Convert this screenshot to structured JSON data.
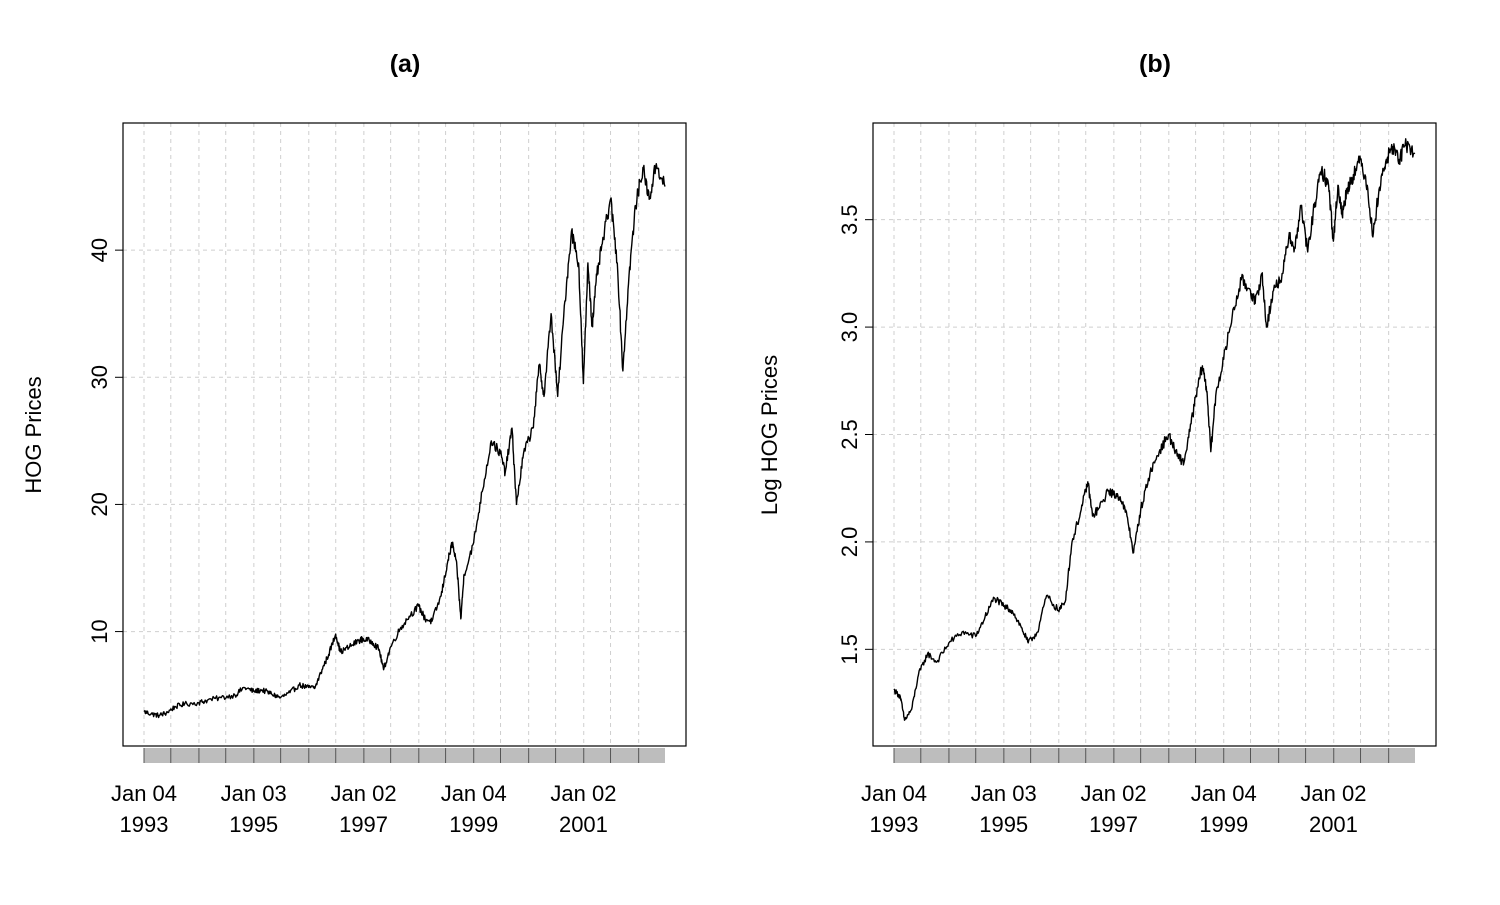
{
  "chart_data": [
    {
      "type": "line",
      "title": "(a)",
      "xlabel": "",
      "ylabel": "HOG Prices",
      "x_range": [
        "1993-01-04",
        "2002-06-28"
      ],
      "ylim": [
        1,
        50
      ],
      "y_ticks": [
        "10",
        "20",
        "30",
        "40"
      ],
      "x_tick_labels": [
        {
          "date": "1993-01-04",
          "line1": "Jan 04",
          "line2": "1993"
        },
        {
          "date": "1995-01-03",
          "line1": "Jan 03",
          "line2": "1995"
        },
        {
          "date": "1997-01-02",
          "line1": "Jan 02",
          "line2": "1997"
        },
        {
          "date": "1999-01-04",
          "line1": "Jan 04",
          "line2": "1999"
        },
        {
          "date": "2001-01-02",
          "line1": "Jan 02",
          "line2": "2001"
        }
      ],
      "grid": true,
      "series": [
        {
          "points": [
            [
              "1993-01-04",
              3.7
            ],
            [
              "1993-03-01",
              3.5
            ],
            [
              "1993-04-15",
              3.4
            ],
            [
              "1993-06-01",
              3.6
            ],
            [
              "1993-08-01",
              4.1
            ],
            [
              "1993-10-01",
              4.3
            ],
            [
              "1994-01-03",
              4.4
            ],
            [
              "1994-03-01",
              4.6
            ],
            [
              "1994-06-01",
              4.8
            ],
            [
              "1994-09-01",
              5.0
            ],
            [
              "1994-11-01",
              5.6
            ],
            [
              "1995-01-03",
              5.3
            ],
            [
              "1995-03-01",
              5.4
            ],
            [
              "1995-05-01",
              5.1
            ],
            [
              "1995-07-01",
              4.8
            ],
            [
              "1995-09-01",
              5.2
            ],
            [
              "1995-11-01",
              5.8
            ],
            [
              "1996-01-02",
              5.6
            ],
            [
              "1996-02-15",
              5.6
            ],
            [
              "1996-04-01",
              7.0
            ],
            [
              "1996-05-15",
              8.2
            ],
            [
              "1996-07-01",
              9.8
            ],
            [
              "1996-08-01",
              8.4
            ],
            [
              "1996-10-01",
              8.8
            ],
            [
              "1996-12-01",
              9.3
            ],
            [
              "1997-01-02",
              9.4
            ],
            [
              "1997-03-01",
              9.2
            ],
            [
              "1997-04-15",
              8.6
            ],
            [
              "1997-05-15",
              7.0
            ],
            [
              "1997-07-01",
              8.8
            ],
            [
              "1997-09-01",
              10.2
            ],
            [
              "1997-11-01",
              11.2
            ],
            [
              "1998-01-02",
              12.0
            ],
            [
              "1998-02-15",
              11.0
            ],
            [
              "1998-04-01",
              10.8
            ],
            [
              "1998-06-01",
              12.8
            ],
            [
              "1998-07-15",
              15.5
            ],
            [
              "1998-08-15",
              17.0
            ],
            [
              "1998-09-15",
              15.0
            ],
            [
              "1998-10-10",
              11.0
            ],
            [
              "1998-11-01",
              14.5
            ],
            [
              "1999-01-04",
              17.0
            ],
            [
              "1999-03-01",
              21.0
            ],
            [
              "1999-05-01",
              25.0
            ],
            [
              "1999-07-01",
              24.0
            ],
            [
              "1999-08-01",
              22.5
            ],
            [
              "1999-09-15",
              26.0
            ],
            [
              "1999-10-15",
              20.0
            ],
            [
              "1999-12-01",
              24.0
            ],
            [
              "2000-02-01",
              26.0
            ],
            [
              "2000-03-15",
              31.0
            ],
            [
              "2000-04-15",
              28.5
            ],
            [
              "2000-06-01",
              35.0
            ],
            [
              "2000-07-15",
              28.5
            ],
            [
              "2000-09-01",
              36.0
            ],
            [
              "2000-10-15",
              41.5
            ],
            [
              "2000-12-01",
              39.0
            ],
            [
              "2001-01-02",
              29.5
            ],
            [
              "2001-02-01",
              39.0
            ],
            [
              "2001-03-01",
              34.0
            ],
            [
              "2001-04-01",
              38.0
            ],
            [
              "2001-05-15",
              41.0
            ],
            [
              "2001-07-01",
              44.0
            ],
            [
              "2001-08-15",
              39.0
            ],
            [
              "2001-09-21",
              30.5
            ],
            [
              "2001-11-01",
              38.0
            ],
            [
              "2001-12-15",
              43.5
            ],
            [
              "2002-02-01",
              46.5
            ],
            [
              "2002-03-15",
              44.0
            ],
            [
              "2002-05-01",
              46.8
            ],
            [
              "2002-06-28",
              45.0
            ]
          ]
        }
      ]
    },
    {
      "type": "line",
      "title": "(b)",
      "xlabel": "",
      "ylabel": "Log HOG Prices",
      "x_range": [
        "1993-01-04",
        "2002-06-28"
      ],
      "ylim": [
        1.05,
        3.95
      ],
      "y_ticks": [
        "1.5",
        "2.0",
        "2.5",
        "3.0",
        "3.5"
      ],
      "x_tick_labels": [
        {
          "date": "1993-01-04",
          "line1": "Jan 04",
          "line2": "1993"
        },
        {
          "date": "1995-01-03",
          "line1": "Jan 03",
          "line2": "1995"
        },
        {
          "date": "1997-01-02",
          "line1": "Jan 02",
          "line2": "1997"
        },
        {
          "date": "1999-01-04",
          "line1": "Jan 04",
          "line2": "1999"
        },
        {
          "date": "2001-01-02",
          "line1": "Jan 02",
          "line2": "2001"
        }
      ],
      "grid": true,
      "series": [
        {
          "points": [
            [
              "1993-01-04",
              1.31
            ],
            [
              "1993-02-15",
              1.28
            ],
            [
              "1993-03-15",
              1.17
            ],
            [
              "1993-05-01",
              1.22
            ],
            [
              "1993-06-15",
              1.38
            ],
            [
              "1993-08-15",
              1.48
            ],
            [
              "1993-10-15",
              1.44
            ],
            [
              "1994-01-03",
              1.53
            ],
            [
              "1994-04-01",
              1.58
            ],
            [
              "1994-07-01",
              1.56
            ],
            [
              "1994-09-01",
              1.65
            ],
            [
              "1994-11-01",
              1.74
            ],
            [
              "1995-01-03",
              1.7
            ],
            [
              "1995-03-01",
              1.68
            ],
            [
              "1995-05-01",
              1.6
            ],
            [
              "1995-06-15",
              1.53
            ],
            [
              "1995-08-15",
              1.58
            ],
            [
              "1995-10-15",
              1.75
            ],
            [
              "1996-01-02",
              1.68
            ],
            [
              "1996-02-15",
              1.72
            ],
            [
              "1996-04-01",
              2.0
            ],
            [
              "1996-06-01",
              2.15
            ],
            [
              "1996-07-15",
              2.28
            ],
            [
              "1996-08-15",
              2.12
            ],
            [
              "1996-10-01",
              2.16
            ],
            [
              "1996-12-01",
              2.24
            ],
            [
              "1997-01-02",
              2.22
            ],
            [
              "1997-02-15",
              2.21
            ],
            [
              "1997-04-01",
              2.12
            ],
            [
              "1997-05-15",
              1.95
            ],
            [
              "1997-07-01",
              2.15
            ],
            [
              "1997-09-01",
              2.32
            ],
            [
              "1997-11-01",
              2.42
            ],
            [
              "1998-01-02",
              2.5
            ],
            [
              "1998-03-01",
              2.4
            ],
            [
              "1998-04-15",
              2.37
            ],
            [
              "1998-06-01",
              2.55
            ],
            [
              "1998-07-15",
              2.72
            ],
            [
              "1998-08-15",
              2.82
            ],
            [
              "1998-09-15",
              2.7
            ],
            [
              "1998-10-10",
              2.42
            ],
            [
              "1998-11-15",
              2.7
            ],
            [
              "1999-01-04",
              2.85
            ],
            [
              "1999-03-01",
              3.05
            ],
            [
              "1999-05-01",
              3.22
            ],
            [
              "1999-07-01",
              3.17
            ],
            [
              "1999-08-01",
              3.11
            ],
            [
              "1999-09-15",
              3.25
            ],
            [
              "1999-10-15",
              3.0
            ],
            [
              "1999-12-01",
              3.17
            ],
            [
              "2000-02-01",
              3.25
            ],
            [
              "2000-03-15",
              3.44
            ],
            [
              "2000-04-15",
              3.35
            ],
            [
              "2000-06-01",
              3.56
            ],
            [
              "2000-07-15",
              3.35
            ],
            [
              "2000-09-01",
              3.58
            ],
            [
              "2000-10-15",
              3.73
            ],
            [
              "2000-12-01",
              3.66
            ],
            [
              "2001-01-02",
              3.4
            ],
            [
              "2001-02-01",
              3.66
            ],
            [
              "2001-03-01",
              3.52
            ],
            [
              "2001-04-01",
              3.64
            ],
            [
              "2001-05-15",
              3.71
            ],
            [
              "2001-07-01",
              3.78
            ],
            [
              "2001-08-15",
              3.66
            ],
            [
              "2001-09-21",
              3.42
            ],
            [
              "2001-11-01",
              3.64
            ],
            [
              "2001-12-15",
              3.77
            ],
            [
              "2002-02-01",
              3.84
            ],
            [
              "2002-03-15",
              3.78
            ],
            [
              "2002-05-01",
              3.85
            ],
            [
              "2002-06-28",
              3.81
            ]
          ]
        }
      ]
    }
  ]
}
